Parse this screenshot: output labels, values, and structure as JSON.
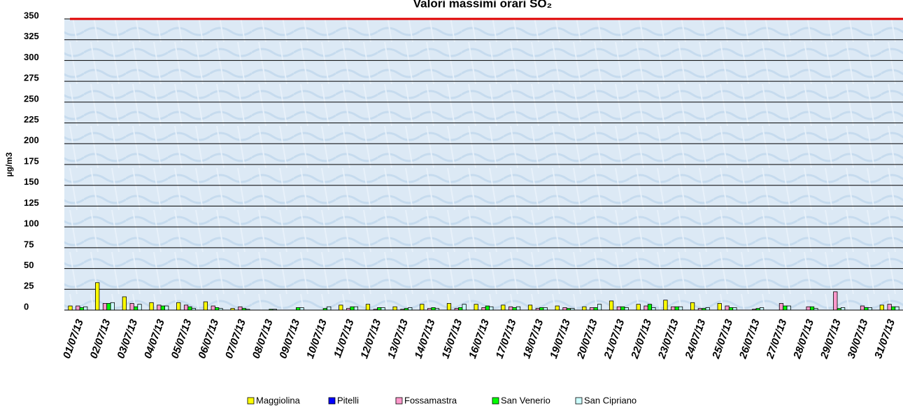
{
  "chart_data": {
    "type": "bar",
    "title": "Valori massimi orari SO₂",
    "y_label": "µg/m3",
    "categories": [
      "01/07/13",
      "02/07/13",
      "03/07/13",
      "04/07/13",
      "05/07/13",
      "06/07/13",
      "07/07/13",
      "08/07/13",
      "09/07/13",
      "10/07/13",
      "11/07/13",
      "12/07/13",
      "13/07/13",
      "14/07/13",
      "15/07/13",
      "16/07/13",
      "17/07/13",
      "18/07/13",
      "19/07/13",
      "20/07/13",
      "21/07/13",
      "22/07/13",
      "23/07/13",
      "24/07/13",
      "25/07/13",
      "26/07/13",
      "27/07/13",
      "28/07/13",
      "29/07/13",
      "30/07/13",
      "31/07/13"
    ],
    "series": [
      {
        "name": "Maggiolina",
        "color": "#ffff00",
        "values": [
          5,
          33,
          16,
          9,
          9,
          10,
          2,
          0,
          0,
          0,
          6,
          7,
          4,
          7,
          8,
          7,
          6,
          6,
          5,
          4,
          11,
          7,
          12,
          9,
          8,
          0,
          0,
          0,
          0,
          0,
          6
        ]
      },
      {
        "name": "Pitelli",
        "color": "#0000ff",
        "values": [
          null,
          null,
          null,
          null,
          null,
          null,
          null,
          null,
          null,
          null,
          null,
          null,
          null,
          null,
          null,
          null,
          null,
          null,
          null,
          null,
          null,
          null,
          null,
          null,
          null,
          null,
          null,
          null,
          null,
          null,
          null
        ]
      },
      {
        "name": "Fossamastra",
        "color": "#ff99cc",
        "values": [
          5,
          8,
          8,
          6,
          6,
          5,
          4,
          0,
          0,
          0,
          2,
          1,
          1,
          2,
          2,
          3,
          4,
          2,
          3,
          3,
          4,
          5,
          4,
          2,
          5,
          1,
          8,
          4,
          22,
          5,
          7
        ]
      },
      {
        "name": "San Venerio",
        "color": "#00ff00",
        "values": [
          3,
          8,
          4,
          5,
          4,
          3,
          2,
          1,
          3,
          2,
          4,
          3,
          2,
          3,
          3,
          5,
          3,
          3,
          2,
          3,
          4,
          7,
          4,
          2,
          3,
          2,
          5,
          4,
          2,
          3,
          4
        ]
      },
      {
        "name": "San Cipriano",
        "color": "#ccffff",
        "values": [
          4,
          9,
          7,
          5,
          2,
          2,
          1,
          1,
          3,
          4,
          4,
          3,
          3,
          2,
          7,
          4,
          4,
          3,
          2,
          7,
          3,
          3,
          4,
          3,
          3,
          3,
          5,
          2,
          3,
          3,
          4
        ]
      }
    ],
    "ylim": [
      0,
      350
    ],
    "yticks": [
      0,
      25,
      50,
      75,
      100,
      125,
      150,
      175,
      200,
      225,
      250,
      275,
      300,
      325,
      350
    ],
    "grid": true,
    "limit_line": {
      "value": 350,
      "color": "#e00000"
    },
    "legend": "bottom"
  }
}
